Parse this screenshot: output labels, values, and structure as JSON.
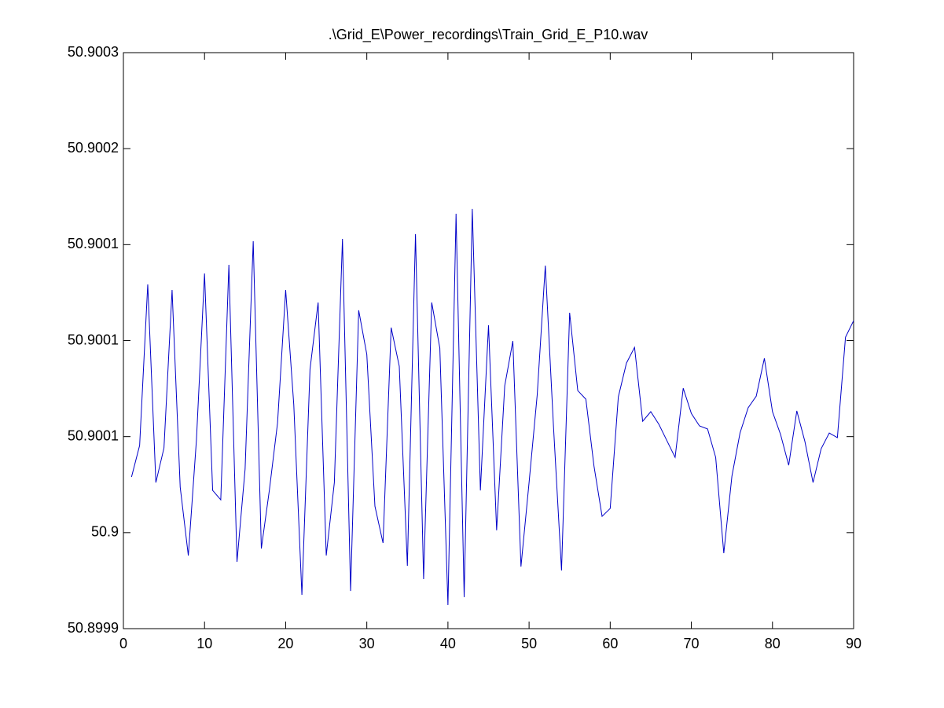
{
  "chart_data": {
    "type": "line",
    "title": ".\\Grid_E\\Power_recordings\\Train_Grid_E_P10.wav",
    "x": [
      1,
      2,
      3,
      4,
      5,
      6,
      7,
      8,
      9,
      10,
      11,
      12,
      13,
      14,
      15,
      16,
      17,
      18,
      19,
      20,
      21,
      22,
      23,
      24,
      25,
      26,
      27,
      28,
      29,
      30,
      31,
      32,
      33,
      34,
      35,
      36,
      37,
      38,
      39,
      40,
      41,
      42,
      43,
      44,
      45,
      46,
      47,
      48,
      49,
      50,
      51,
      52,
      53,
      54,
      55,
      56,
      57,
      58,
      59,
      60,
      61,
      62,
      63,
      64,
      65,
      66,
      67,
      68,
      69,
      70,
      71,
      72,
      73,
      74,
      75,
      76,
      77,
      78,
      79,
      80,
      81,
      82,
      83,
      84,
      85,
      86,
      87,
      88,
      89,
      90
    ],
    "series": [
      {
        "color": "#0000c8",
        "values": [
          50.900029,
          50.9000454,
          50.9001293,
          50.9000261,
          50.9000441,
          50.9001264,
          50.9000237,
          50.8999881,
          50.9000482,
          50.900135,
          50.900022,
          50.9000171,
          50.9001395,
          50.8999848,
          50.9000331,
          50.9001518,
          50.8999917,
          50.9000224,
          50.9000572,
          50.9001264,
          50.9000666,
          50.8999676,
          50.9000851,
          50.9001199,
          50.8999881,
          50.9000261,
          50.900153,
          50.8999696,
          50.9001158,
          50.9000928,
          50.9000138,
          50.8999946,
          50.9001068,
          50.9000867,
          50.8999827,
          50.9001555,
          50.8999758,
          50.9001199,
          50.9000961,
          50.8999623,
          50.9001661,
          50.8999664,
          50.9001686,
          50.900022,
          50.900108,
          50.9000012,
          50.9000765,
          50.9000998,
          50.8999823,
          50.9000261,
          50.9000716,
          50.9001391,
          50.900056,
          50.8999803,
          50.9001145,
          50.900074,
          50.9000695,
          50.9000347,
          50.9000085,
          50.9000126,
          50.9000707,
          50.9000883,
          50.9000965,
          50.900058,
          50.900063,
          50.9000564,
          50.9000478,
          50.9000392,
          50.9000752,
          50.9000621,
          50.9000556,
          50.900054,
          50.9000392,
          50.8999893,
          50.9000294,
          50.9000519,
          50.900065,
          50.9000711,
          50.9000908,
          50.900063,
          50.9000511,
          50.9000351,
          50.9000634,
          50.9000474,
          50.9000261,
          50.9000437,
          50.9000519,
          50.9000495,
          50.9001018,
          50.9001104
        ]
      }
    ],
    "xlim": [
      0,
      90
    ],
    "xticks": [
      0,
      10,
      20,
      30,
      40,
      50,
      60,
      70,
      80,
      90
    ],
    "ylim": [
      50.89995,
      50.90025
    ],
    "yticks": [
      {
        "value": 50.89995,
        "label": "50.8999"
      },
      {
        "value": 50.9,
        "label": "50.9"
      },
      {
        "value": 50.90005,
        "label": "50.9001"
      },
      {
        "value": 50.9001,
        "label": "50.9001"
      },
      {
        "value": 50.90015,
        "label": "50.9001"
      },
      {
        "value": 50.9002,
        "label": "50.9002"
      },
      {
        "value": 50.90025,
        "label": "50.9003"
      }
    ],
    "grid": false
  }
}
